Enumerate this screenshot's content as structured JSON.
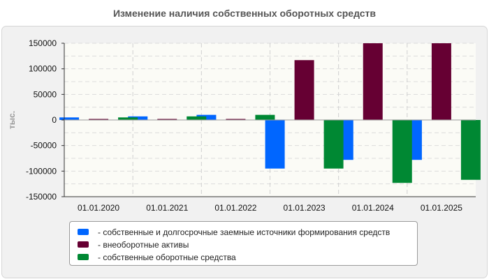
{
  "chart_data": {
    "type": "bar",
    "title": "Изменение наличия собственных оборотных средств",
    "ylabel": "тыс.",
    "xlabel": "",
    "categories": [
      "01.01.2020",
      "01.01.2021",
      "01.01.2022",
      "01.01.2023",
      "01.01.2024",
      "01.01.2025"
    ],
    "ylim": [
      -150000,
      150000
    ],
    "yticks": [
      150000,
      100000,
      50000,
      0,
      -50000,
      -100000,
      -150000
    ],
    "grid": true,
    "legend_position": "bottom",
    "series": [
      {
        "name": "- собственные и долгосрочные заемные источники формирования средств",
        "color": "#0066ff",
        "values": [
          5000,
          7000,
          10000,
          -95000,
          -78000,
          -78000
        ]
      },
      {
        "name": "- внеоборотные активы",
        "color": "#660033",
        "values": [
          2000,
          2000,
          2000,
          117000,
          150000,
          150000
        ]
      },
      {
        "name": "- собственные оборотные средства",
        "color": "#008833",
        "values": [
          5000,
          7000,
          10000,
          -95000,
          -123000,
          -117000
        ]
      }
    ]
  }
}
